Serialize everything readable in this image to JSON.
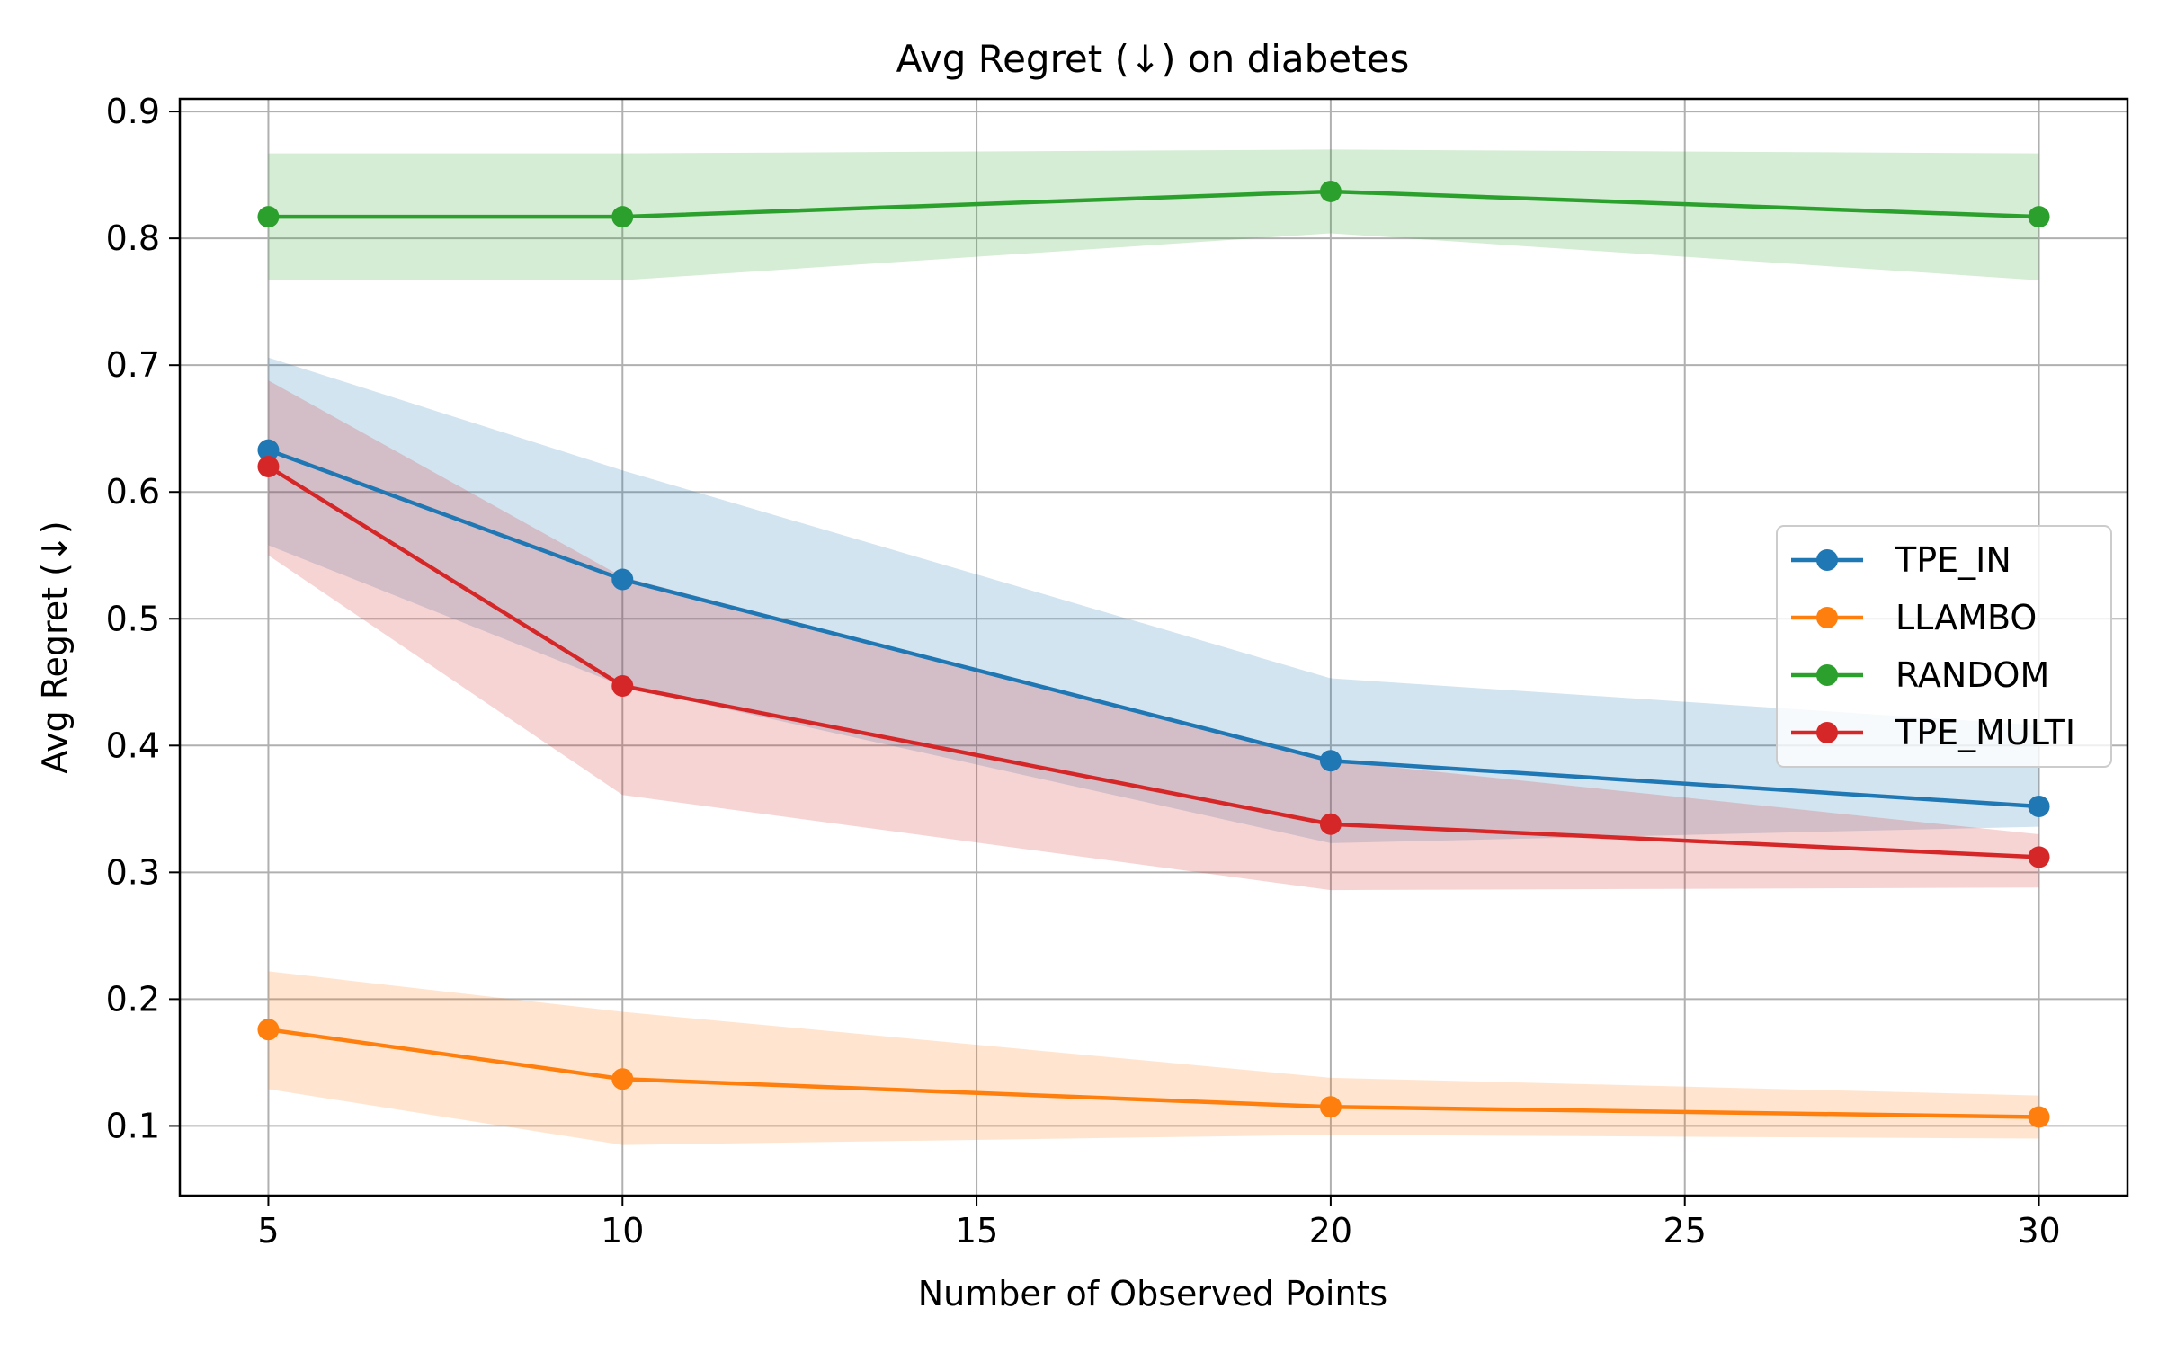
{
  "chart_data": {
    "type": "line",
    "title": "Avg Regret (↓) on diabetes",
    "xlabel": "Number of Observed Points",
    "ylabel": "Avg Regret (↓)",
    "x": [
      5,
      10,
      20,
      30
    ],
    "xlim": [
      3.75,
      31.25
    ],
    "ylim": [
      0.045,
      0.91
    ],
    "xticks": [
      5,
      10,
      15,
      20,
      25,
      30
    ],
    "xtick_labels": [
      "5",
      "10",
      "15",
      "20",
      "25",
      "30"
    ],
    "yticks": [
      0.1,
      0.2,
      0.3,
      0.4,
      0.5,
      0.6,
      0.7,
      0.8,
      0.9
    ],
    "ytick_labels": [
      "0.1",
      "0.2",
      "0.3",
      "0.4",
      "0.5",
      "0.6",
      "0.7",
      "0.8",
      "0.9"
    ],
    "grid": true,
    "legend_position": "center-right",
    "series": [
      {
        "name": "TPE_IN",
        "color": "#1f77b4",
        "values": [
          0.633,
          0.531,
          0.388,
          0.352
        ],
        "band_upper": [
          0.706,
          0.617,
          0.453,
          0.416
        ],
        "band_lower": [
          0.558,
          0.447,
          0.323,
          0.336
        ]
      },
      {
        "name": "LLAMBO",
        "color": "#ff7f0e",
        "values": [
          0.176,
          0.137,
          0.115,
          0.107
        ],
        "band_upper": [
          0.222,
          0.19,
          0.138,
          0.124
        ],
        "band_lower": [
          0.129,
          0.085,
          0.093,
          0.09
        ]
      },
      {
        "name": "RANDOM",
        "color": "#2ca02c",
        "values": [
          0.817,
          0.817,
          0.837,
          0.817
        ],
        "band_upper": [
          0.867,
          0.867,
          0.87,
          0.867
        ],
        "band_lower": [
          0.767,
          0.767,
          0.804,
          0.767
        ]
      },
      {
        "name": "TPE_MULTI",
        "color": "#d62728",
        "values": [
          0.62,
          0.447,
          0.338,
          0.312
        ],
        "band_upper": [
          0.688,
          0.533,
          0.388,
          0.33
        ],
        "band_lower": [
          0.55,
          0.361,
          0.286,
          0.288
        ]
      }
    ]
  }
}
